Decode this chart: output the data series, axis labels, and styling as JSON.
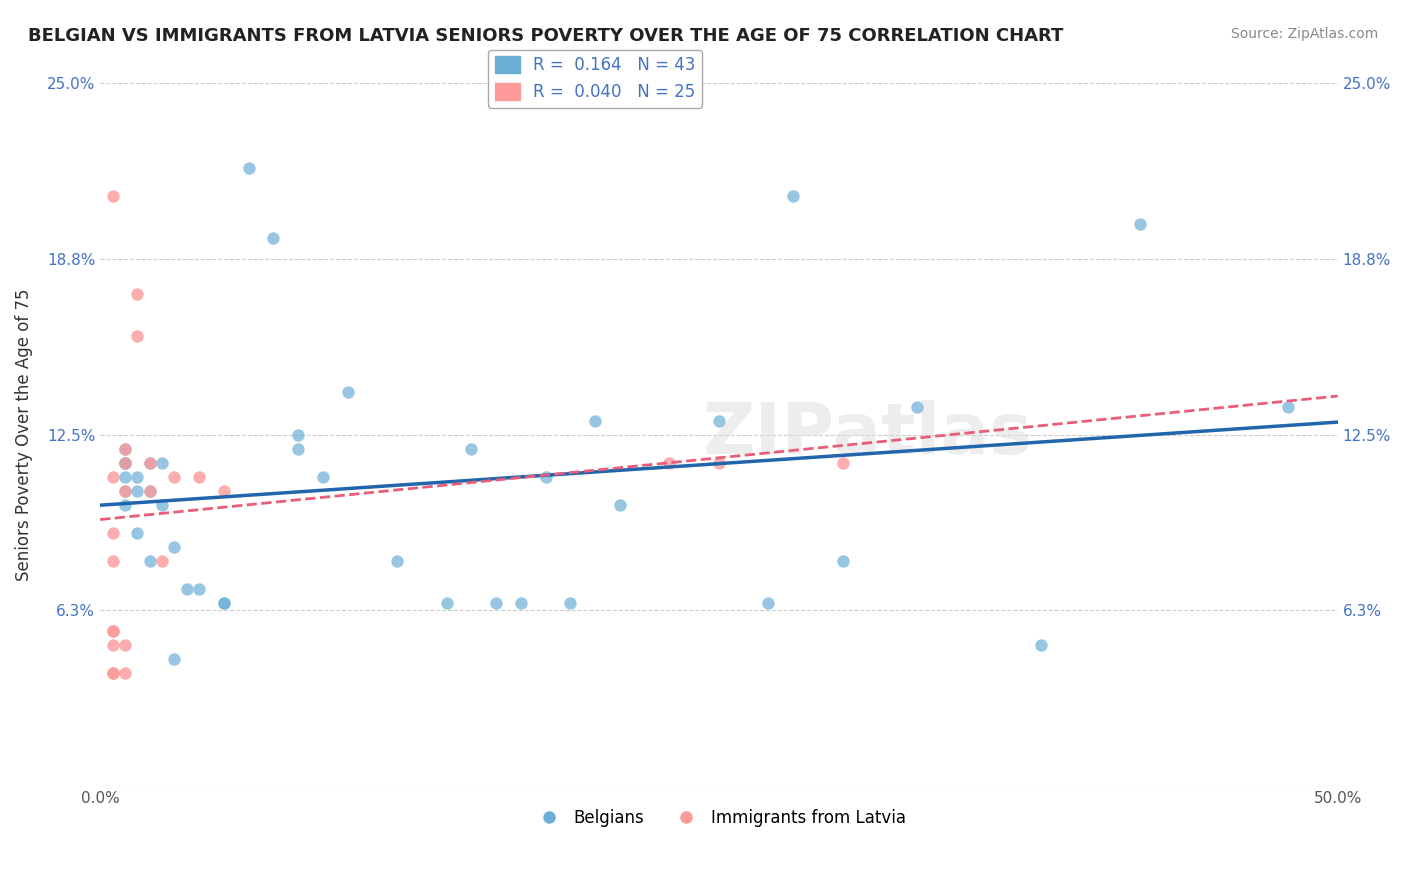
{
  "title": "BELGIAN VS IMMIGRANTS FROM LATVIA SENIORS POVERTY OVER THE AGE OF 75 CORRELATION CHART",
  "source": "Source: ZipAtlas.com",
  "ylabel": "Seniors Poverty Over the Age of 75",
  "xlim": [
    0,
    0.5
  ],
  "ylim": [
    0,
    0.25
  ],
  "ytick_values": [
    0.0,
    0.0625,
    0.125,
    0.1875,
    0.25
  ],
  "ytick_labels": [
    "",
    "6.3%",
    "12.5%",
    "18.8%",
    "25.0%"
  ],
  "R_belgian": 0.164,
  "N_belgian": 43,
  "R_latvia": 0.04,
  "N_latvia": 25,
  "belgian_color": "#6baed6",
  "latvia_color": "#fb9a99",
  "trend_belgian_color": "#2166ac",
  "trend_latvia_color": "#e85d7a",
  "watermark": "ZIPatlas",
  "legend_labels": [
    "Belgians",
    "Immigrants from Latvia"
  ],
  "belgian_x": [
    0.01,
    0.01,
    0.01,
    0.01,
    0.01,
    0.01,
    0.015,
    0.015,
    0.015,
    0.02,
    0.02,
    0.02,
    0.025,
    0.025,
    0.03,
    0.03,
    0.035,
    0.04,
    0.05,
    0.05,
    0.06,
    0.07,
    0.08,
    0.08,
    0.09,
    0.1,
    0.12,
    0.14,
    0.15,
    0.16,
    0.17,
    0.18,
    0.19,
    0.2,
    0.21,
    0.25,
    0.27,
    0.28,
    0.3,
    0.33,
    0.38,
    0.42,
    0.48
  ],
  "belgian_y": [
    0.1,
    0.105,
    0.11,
    0.115,
    0.115,
    0.12,
    0.09,
    0.105,
    0.11,
    0.08,
    0.105,
    0.115,
    0.1,
    0.115,
    0.045,
    0.085,
    0.07,
    0.07,
    0.065,
    0.065,
    0.22,
    0.195,
    0.125,
    0.12,
    0.11,
    0.14,
    0.08,
    0.065,
    0.12,
    0.065,
    0.065,
    0.11,
    0.065,
    0.13,
    0.1,
    0.13,
    0.065,
    0.21,
    0.08,
    0.135,
    0.05,
    0.2,
    0.135
  ],
  "latvia_x": [
    0.005,
    0.005,
    0.005,
    0.005,
    0.005,
    0.005,
    0.005,
    0.005,
    0.005,
    0.01,
    0.01,
    0.01,
    0.01,
    0.01,
    0.015,
    0.015,
    0.02,
    0.02,
    0.025,
    0.03,
    0.04,
    0.05,
    0.23,
    0.25,
    0.3
  ],
  "latvia_y": [
    0.04,
    0.04,
    0.05,
    0.055,
    0.055,
    0.08,
    0.09,
    0.11,
    0.21,
    0.04,
    0.05,
    0.105,
    0.115,
    0.12,
    0.16,
    0.175,
    0.105,
    0.115,
    0.08,
    0.11,
    0.11,
    0.105,
    0.115,
    0.115,
    0.115
  ]
}
